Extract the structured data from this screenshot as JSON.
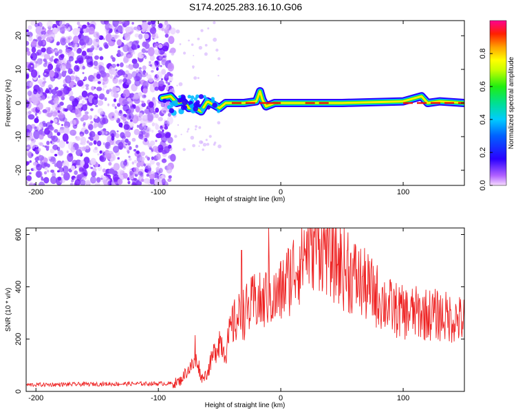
{
  "figure_title": "S174.2025.283.16.10.G06",
  "colors": {
    "snr_line": "#ee2222",
    "spectral_scatter": "#8a2be2",
    "axis": "#000000",
    "background": "#ffffff"
  },
  "chart_data": [
    {
      "type": "heatmap",
      "title": "S174.2025.283.16.10.G06",
      "xlabel": "Height of straight line (km)",
      "ylabel": "Frequency (Hz)",
      "xlim": [
        -208,
        150
      ],
      "ylim": [
        -24.5,
        24.5
      ],
      "xticks": [
        -200,
        -100,
        0,
        100
      ],
      "yticks": [
        -20,
        -10,
        0,
        10,
        20
      ],
      "colorbar": {
        "label": "Normalized spectral amplitude",
        "range": [
          0,
          1
        ],
        "ticks": [
          "0.0",
          "0.2",
          "0.4",
          "0.6",
          "0.8"
        ],
        "tick_values": [
          0.0,
          0.2,
          0.4,
          0.6,
          0.8
        ]
      },
      "features": {
        "noise_region_x": [
          -208,
          -88
        ],
        "noise_region_freq": [
          -24.5,
          24.5
        ],
        "signal_start_height": -97,
        "signal_frequency_hz": 0,
        "signal_path": [
          [
            -97,
            1.5
          ],
          [
            -90,
            2.0
          ],
          [
            -85,
            0.0
          ],
          [
            -80,
            0.5
          ],
          [
            -75,
            -1.5
          ],
          [
            -70,
            -1.5
          ],
          [
            -65,
            -2.5
          ],
          [
            -60,
            0.5
          ],
          [
            -55,
            -0.5
          ],
          [
            -50,
            -1.5
          ],
          [
            -45,
            0.0
          ],
          [
            -40,
            0.0
          ],
          [
            -30,
            0.0
          ],
          [
            -20,
            0.5
          ],
          [
            -17,
            3.5
          ],
          [
            -15,
            1.0
          ],
          [
            -12,
            -1.0
          ],
          [
            -5,
            0.0
          ],
          [
            10,
            0.0
          ],
          [
            50,
            0.0
          ],
          [
            100,
            0.5
          ],
          [
            115,
            2.0
          ],
          [
            120,
            0.0
          ],
          [
            130,
            0.5
          ],
          [
            150,
            0.0
          ]
        ],
        "max_amplitude_heights": [
          [
            -40,
            0
          ],
          [
            -10,
            0
          ],
          [
            20,
            40
          ],
          [
            100,
            150
          ]
        ]
      }
    },
    {
      "type": "line",
      "title": "",
      "xlabel": "Height of straight line (km)",
      "ylabel": "SNR (10 * v/v)",
      "xlim": [
        -208,
        150
      ],
      "ylim": [
        0,
        625
      ],
      "xticks": [
        -200,
        -100,
        0,
        100
      ],
      "yticks": [
        0,
        200,
        400,
        600
      ],
      "series": [
        {
          "name": "SNR",
          "color": "#ee2222",
          "envelope": [
            [
              -208,
              25
            ],
            [
              -150,
              28
            ],
            [
              -100,
              30
            ],
            [
              -88,
              30
            ],
            [
              -82,
              40
            ],
            [
              -78,
              70
            ],
            [
              -72,
              100
            ],
            [
              -68,
              120
            ],
            [
              -65,
              50
            ],
            [
              -60,
              70
            ],
            [
              -55,
              140
            ],
            [
              -50,
              200
            ],
            [
              -45,
              150
            ],
            [
              -40,
              250
            ],
            [
              -35,
              280
            ],
            [
              -30,
              300
            ],
            [
              -25,
              320
            ],
            [
              -20,
              350
            ],
            [
              -15,
              330
            ],
            [
              -10,
              380
            ],
            [
              -5,
              350
            ],
            [
              0,
              380
            ],
            [
              5,
              420
            ],
            [
              10,
              460
            ],
            [
              15,
              500
            ],
            [
              20,
              540
            ],
            [
              25,
              580
            ],
            [
              30,
              590
            ],
            [
              35,
              570
            ],
            [
              40,
              540
            ],
            [
              45,
              500
            ],
            [
              50,
              480
            ],
            [
              55,
              450
            ],
            [
              60,
              440
            ],
            [
              65,
              420
            ],
            [
              70,
              400
            ],
            [
              75,
              380
            ],
            [
              80,
              360
            ],
            [
              85,
              340
            ],
            [
              90,
              320
            ],
            [
              95,
              310
            ],
            [
              100,
              300
            ],
            [
              110,
              300
            ],
            [
              120,
              295
            ],
            [
              130,
              290
            ],
            [
              140,
              280
            ],
            [
              150,
              270
            ]
          ],
          "spikes": [
            [
              -70,
              215
            ],
            [
              -32,
              540
            ],
            [
              -10,
              625
            ],
            [
              30,
              625
            ],
            [
              55,
              608
            ]
          ]
        }
      ]
    }
  ]
}
